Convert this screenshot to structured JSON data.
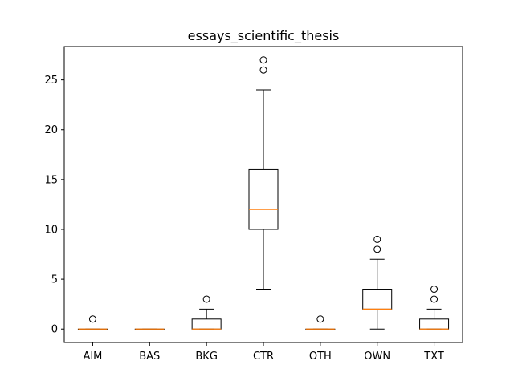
{
  "chart_data": {
    "type": "box",
    "title": "essays_scientific_thesis",
    "xlabel": "",
    "ylabel": "",
    "categories": [
      "AIM",
      "BAS",
      "BKG",
      "CTR",
      "OTH",
      "OWN",
      "TXT"
    ],
    "ylim": [
      -1.35,
      28.35
    ],
    "yticks": [
      0,
      5,
      10,
      15,
      20,
      25
    ],
    "grid": false,
    "colors": {
      "box": "#000000",
      "median": "#ff7f0e"
    },
    "boxes": [
      {
        "label": "AIM",
        "whislo": 0,
        "q1": 0,
        "med": 0,
        "q3": 0,
        "whishi": 0,
        "fliers": [
          1
        ]
      },
      {
        "label": "BAS",
        "whislo": 0,
        "q1": 0,
        "med": 0,
        "q3": 0,
        "whishi": 0,
        "fliers": []
      },
      {
        "label": "BKG",
        "whislo": 0,
        "q1": 0,
        "med": 0,
        "q3": 1,
        "whishi": 2,
        "fliers": [
          3
        ]
      },
      {
        "label": "CTR",
        "whislo": 4,
        "q1": 10,
        "med": 12,
        "q3": 16,
        "whishi": 24,
        "fliers": [
          26,
          27
        ]
      },
      {
        "label": "OTH",
        "whislo": 0,
        "q1": 0,
        "med": 0,
        "q3": 0,
        "whishi": 0,
        "fliers": [
          1
        ]
      },
      {
        "label": "OWN",
        "whislo": 0,
        "q1": 2,
        "med": 2,
        "q3": 4,
        "whishi": 7,
        "fliers": [
          8,
          9
        ]
      },
      {
        "label": "TXT",
        "whislo": 0,
        "q1": 0,
        "med": 0,
        "q3": 1,
        "whishi": 2,
        "fliers": [
          3,
          4
        ]
      }
    ]
  }
}
